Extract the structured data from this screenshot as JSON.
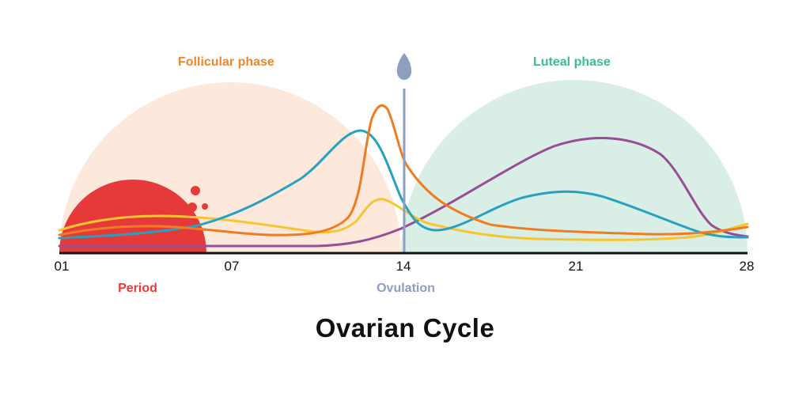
{
  "title": "Ovarian Cycle",
  "phases": {
    "follicular": {
      "label": "Follicular phase",
      "color": "#f0862a"
    },
    "luteal": {
      "label": "Luteal phase",
      "color": "#3dbb98"
    }
  },
  "events": {
    "period": {
      "label": "Period",
      "color": "#e63a3a"
    },
    "ovulation": {
      "label": "Ovulation",
      "color": "#8d9fbe"
    }
  },
  "axis": {
    "ticks": [
      "01",
      "07",
      "14",
      "21",
      "28"
    ],
    "range": [
      1,
      28
    ]
  },
  "colors": {
    "follicular_fill": "#fde9dc",
    "luteal_fill": "#d9efe6",
    "period_fill": "#e63a3a",
    "ovulation_marker": "#8d9fbe",
    "curve_orange": "#f07c22",
    "curve_blue": "#27a1be",
    "curve_yellow": "#f7c531",
    "curve_purple": "#974d97"
  }
}
